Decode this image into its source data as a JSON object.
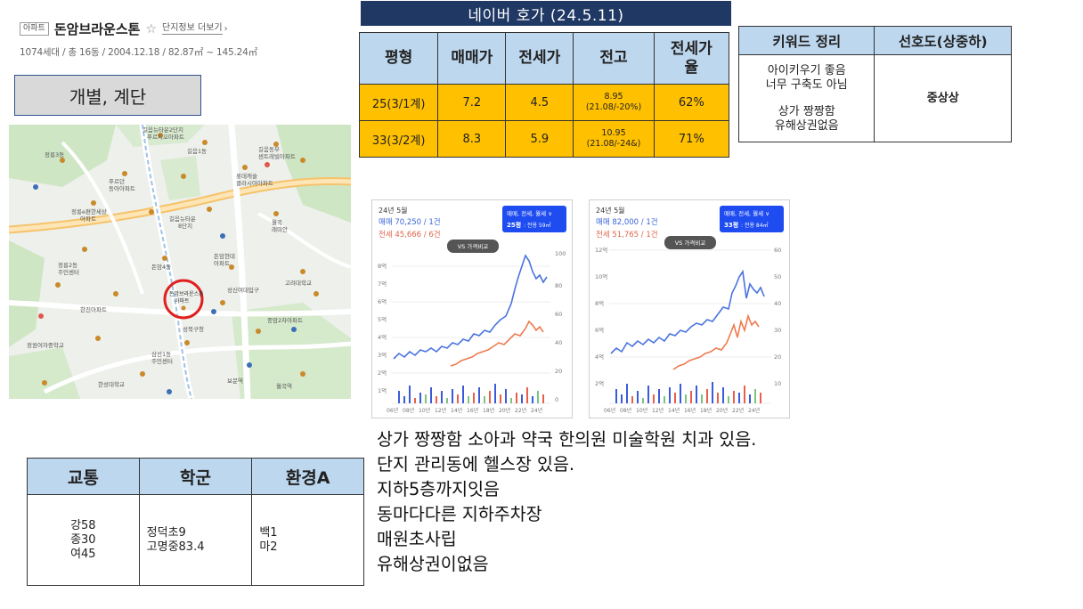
{
  "apt": {
    "type_badge": "아파트",
    "name": "돈암브라운스톤",
    "star": "☆",
    "more_link": "단지정보 더보기",
    "more_arrow": "›",
    "info": "1074세대 / 총 16동 / 2004.12.18 / 82.87㎡ ~ 145.24㎡"
  },
  "type_box": "개별, 계단",
  "map": {
    "labels": [
      "길음뉴타운2단지\n푸르지오아파트",
      "길음1동",
      "길음동부\n센트레빌아파트",
      "정릉3동",
      "정릉e편한세상\n아파트",
      "푸르던\n동아아파트",
      "돈암4동",
      "롯데캐슬\n클라시아아파트",
      "길음뉴타운\n8단지",
      "정릉2동\n주민센터",
      "길음1동\n주민센터",
      "정릉경남\n아파트",
      "돈암현대\n아파트",
      "월곡\n래미안",
      "삼선1동\n주민센터",
      "돈암브라운스톤\n아파트",
      "고려대학교",
      "성신여대입구",
      "한진아파트",
      "성북구청",
      "한성대학교",
      "보문역",
      "정원여자중학교",
      "정덕초",
      "고명중",
      "월곡역",
      "종암2차아파트"
    ],
    "marker_label": "돈암브라운스톤\n아파트",
    "accent": "#e02020"
  },
  "price": {
    "title": "네이버 호가 (24.5.11)",
    "headers": [
      "평형",
      "매매가",
      "전세가",
      "전고",
      "전세가\n율"
    ],
    "rows": [
      {
        "size": "25(3/1계)",
        "sale": "7.2",
        "jeonse": "4.5",
        "prev_high": "8.95",
        "prev_high_note": "(21.08/-20%)",
        "ratio": "62%"
      },
      {
        "size": "33(3/2계)",
        "sale": "8.3",
        "jeonse": "5.9",
        "prev_high": "10.95",
        "prev_high_note": "(21.08/-24&)",
        "ratio": "71%"
      }
    ],
    "colors": {
      "header_bg": "#bdd7ee",
      "cell_bg": "#ffc000",
      "title_bg": "#1f3864"
    }
  },
  "keywords": {
    "header_left": "키워드 정리",
    "header_right": "선호도(상중하)",
    "lines": [
      "아이키우기 좋음",
      "너무 구축도 아님",
      "상가 짱짱함",
      "유해상권없음"
    ],
    "preference": "중상상"
  },
  "charts": [
    {
      "period": "24년 5월",
      "sale_label": "매매 70,250 / 1건",
      "jeonse_label": "전세 45,666 / 6건",
      "filter": "매매, 전세, 월세 ∨",
      "size_tag": "25평",
      "size_sub": ": 전용 59㎡",
      "compare": "VS 가격비교",
      "y_left": [
        "8억",
        "7억",
        "6억",
        "5억",
        "4억",
        "3억",
        "2억",
        "1억"
      ],
      "y_right": [
        "100",
        "80",
        "60",
        "40",
        "20",
        "0"
      ],
      "x_ticks": [
        "06년",
        "08년",
        "10년",
        "12년",
        "14년",
        "16년",
        "18년",
        "20년",
        "22년",
        "24년"
      ]
    },
    {
      "period": "24년 5월",
      "sale_label": "매매 82,000 / 1건",
      "jeonse_label": "전세 51,765 / 1건",
      "filter": "매매, 전세, 월세 ∨",
      "size_tag": "33평",
      "size_sub": ": 전용 84㎡",
      "compare": "VS 가격비교",
      "y_left": [
        "12억",
        "10억",
        "8억",
        "6억",
        "4억",
        "2억"
      ],
      "y_right": [
        "60",
        "50",
        "40",
        "30",
        "20",
        "10"
      ],
      "x_ticks": [
        "06년",
        "08년",
        "10년",
        "12년",
        "14년",
        "16년",
        "18년",
        "20년",
        "22년",
        "24년"
      ]
    }
  ],
  "notes": [
    "상가 짱짱함 소아과 약국 한의원 미술학원 치과 있음.",
    "단지 관리동에 헬스장 있음.",
    "지하5층까지잇음",
    "동마다다른 지하주차장",
    "매원초사립",
    "유해상권이없음"
  ],
  "env": {
    "headers": [
      "교통",
      "학군",
      "환경A"
    ],
    "traffic": [
      "강58",
      "종30",
      "여45"
    ],
    "school": [
      "정덕초9",
      "고명중83.4"
    ],
    "environment": [
      "백1",
      "마2"
    ]
  }
}
